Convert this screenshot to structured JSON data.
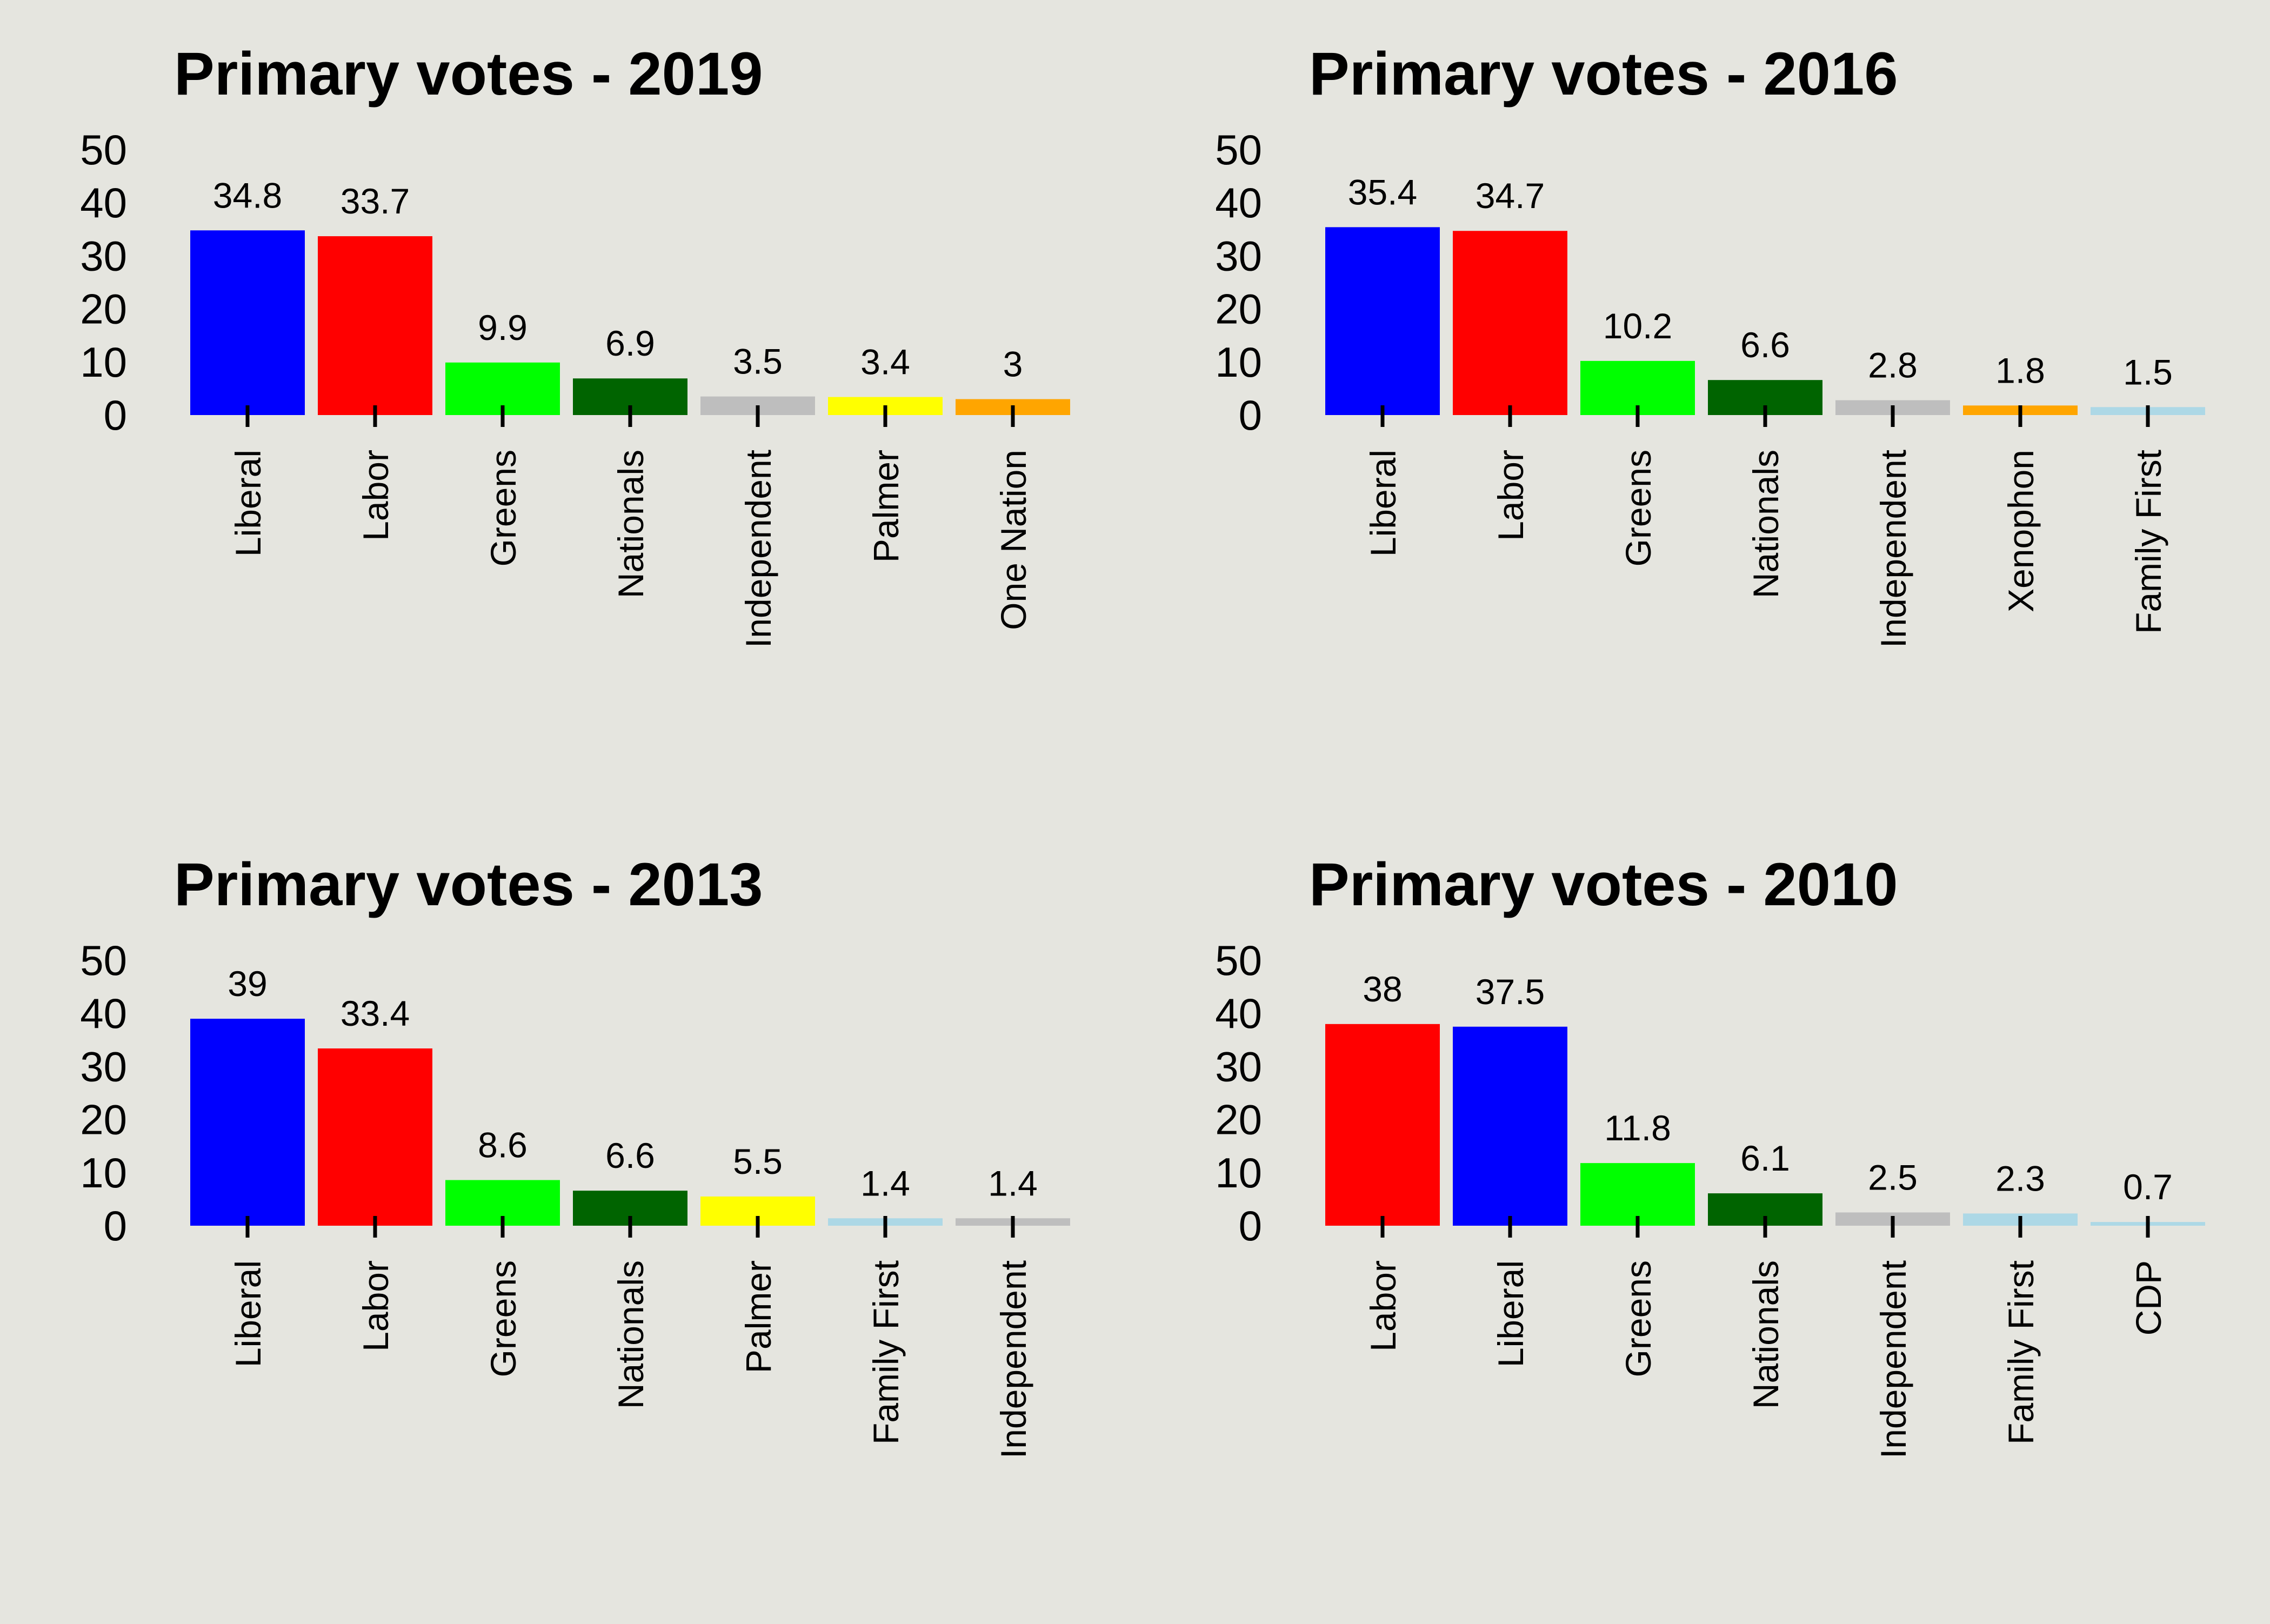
{
  "chart_data": [
    {
      "type": "bar",
      "title": "Primary votes - 2019",
      "ylim": [
        0,
        50
      ],
      "yticks": [
        "50",
        "40",
        "30",
        "20",
        "10",
        "0"
      ],
      "categories": [
        "Liberal",
        "Labor",
        "Greens",
        "Nationals",
        "Independent",
        "Palmer",
        "One Nation"
      ],
      "values": [
        34.8,
        33.7,
        9.9,
        6.9,
        3.5,
        3.4,
        3
      ],
      "data_labels": [
        "34.8",
        "33.7",
        "9.9",
        "6.9",
        "3.5",
        "3.4",
        "3"
      ],
      "colors": [
        "#0000ff",
        "#ff0000",
        "#00ff00",
        "#006400",
        "#bebebe",
        "#ffff00",
        "#ffa500"
      ]
    },
    {
      "type": "bar",
      "title": "Primary votes - 2016",
      "ylim": [
        0,
        50
      ],
      "yticks": [
        "50",
        "40",
        "30",
        "20",
        "10",
        "0"
      ],
      "categories": [
        "Liberal",
        "Labor",
        "Greens",
        "Nationals",
        "Independent",
        "Xenophon",
        "Family First"
      ],
      "values": [
        35.4,
        34.7,
        10.2,
        6.6,
        2.8,
        1.8,
        1.5
      ],
      "data_labels": [
        "35.4",
        "34.7",
        "10.2",
        "6.6",
        "2.8",
        "1.8",
        "1.5"
      ],
      "colors": [
        "#0000ff",
        "#ff0000",
        "#00ff00",
        "#006400",
        "#bebebe",
        "#ffa500",
        "#add8e6"
      ]
    },
    {
      "type": "bar",
      "title": "Primary votes - 2013",
      "ylim": [
        0,
        50
      ],
      "yticks": [
        "50",
        "40",
        "30",
        "20",
        "10",
        "0"
      ],
      "categories": [
        "Liberal",
        "Labor",
        "Greens",
        "Nationals",
        "Palmer",
        "Family First",
        "Independent"
      ],
      "values": [
        39,
        33.4,
        8.6,
        6.6,
        5.5,
        1.4,
        1.4
      ],
      "data_labels": [
        "39",
        "33.4",
        "8.6",
        "6.6",
        "5.5",
        "1.4",
        "1.4"
      ],
      "colors": [
        "#0000ff",
        "#ff0000",
        "#00ff00",
        "#006400",
        "#ffff00",
        "#add8e6",
        "#bebebe"
      ]
    },
    {
      "type": "bar",
      "title": "Primary votes - 2010",
      "ylim": [
        0,
        50
      ],
      "yticks": [
        "50",
        "40",
        "30",
        "20",
        "10",
        "0"
      ],
      "categories": [
        "Labor",
        "Liberal",
        "Greens",
        "Nationals",
        "Independent",
        "Family First",
        "CDP"
      ],
      "values": [
        38,
        37.5,
        11.8,
        6.1,
        2.5,
        2.3,
        0.7
      ],
      "data_labels": [
        "38",
        "37.5",
        "11.8",
        "6.1",
        "2.5",
        "2.3",
        "0.7"
      ],
      "colors": [
        "#ff0000",
        "#0000ff",
        "#00ff00",
        "#006400",
        "#bebebe",
        "#add8e6",
        "#add8e6"
      ]
    }
  ]
}
